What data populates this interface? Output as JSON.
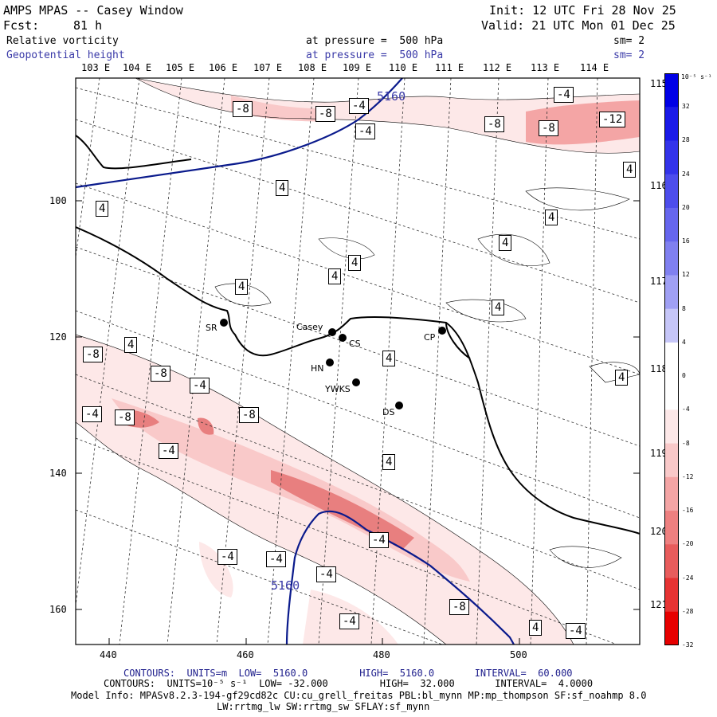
{
  "header": {
    "title": "AMPS MPAS -- Casey Window",
    "init": "Init: 12 UTC Fri 28 Nov 25",
    "fcst_label": "Fcst:",
    "fcst_value": "81 h",
    "valid": "Valid: 21 UTC Mon 01 Dec 25",
    "field1_name": "Relative vorticity",
    "field1_pressure": "at pressure =  500 hPa",
    "field1_sm": "sm= 2",
    "field2_name": "Geopotential height",
    "field2_pressure": "at pressure =  500 hPa",
    "field2_sm": "sm= 2"
  },
  "map": {
    "top_lon_labels": [
      "103 E",
      "104 E",
      "105 E",
      "106 E",
      "107 E",
      "108 E",
      "109 E",
      "110 E",
      "111 E",
      "112 E",
      "113 E",
      "114 E"
    ],
    "right_lon_labels": [
      "115 E",
      "116 E",
      "117 E",
      "118 E",
      "119 E",
      "120 E",
      "121 E"
    ],
    "y_ticks": [
      "100",
      "120",
      "140",
      "160"
    ],
    "x_ticks": [
      "440",
      "460",
      "480",
      "500"
    ],
    "stations": [
      {
        "label": "SR"
      },
      {
        "label": "Casey"
      },
      {
        "label": "CS"
      },
      {
        "label": "CP"
      },
      {
        "label": "HN"
      },
      {
        "label": "YWKS"
      },
      {
        "label": "DS"
      }
    ],
    "height_labels": [
      "5160",
      "5160"
    ],
    "vort_labels": [
      "-8",
      "-8",
      "-4",
      "-4",
      "-4",
      "-8",
      "-8",
      "-12",
      "4",
      "4",
      "4",
      "4",
      "4",
      "4",
      "4",
      "4",
      "4",
      "4",
      "4",
      "-8",
      "-8",
      "-4",
      "-4",
      "-8",
      "-8",
      "-4",
      "4",
      "-4",
      "-4",
      "-4",
      "-4",
      "-8",
      "-4",
      "4",
      "-4",
      "4"
    ],
    "colors": {
      "positive": "#0000e6",
      "negative": "#e60000",
      "height_line": "#0a1a8c",
      "coast": "#000000"
    }
  },
  "colorbar": {
    "unit": "10⁻⁵ s⁻¹",
    "labels": [
      "32",
      "28",
      "24",
      "20",
      "16",
      "12",
      "8",
      "4",
      "0",
      "-4",
      "-8",
      "-12",
      "-16",
      "-20",
      "-24",
      "-28",
      "-32"
    ]
  },
  "footer": {
    "line1": "CONTOURS:  UNITS=m  LOW=  5160.0         HIGH=  5160.0       INTERVAL=  60.000",
    "line2": "CONTOURS:  UNITS=10⁻⁵ s⁻¹  LOW= -32.000         HIGH=  32.000       INTERVAL=  4.0000",
    "line3": "Model Info: MPASv8.2.3-194-gf29cd82c CU:cu_grell_freitas PBL:bl_mynn MP:mp_thompson SF:sf_noahmp 8.0",
    "line4": "LW:rrtmg_lw SW:rrtmg_sw SFLAY:sf_mynn"
  }
}
